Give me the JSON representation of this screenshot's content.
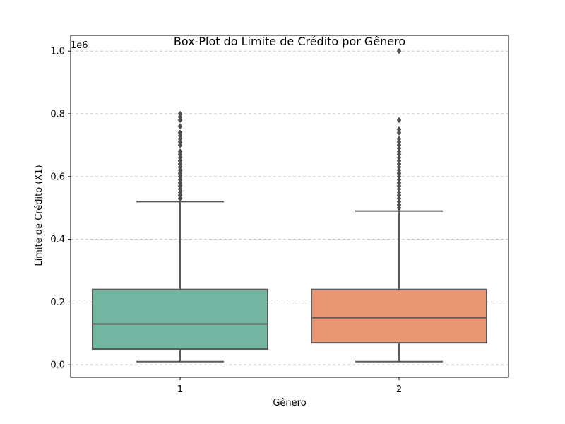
{
  "chart_data": {
    "type": "box",
    "title": "Box-Plot do Limite de Crédito por Gênero",
    "xlabel": "Gênero",
    "ylabel": "Limite de Crédito (X1)",
    "y_scale_label": "1e6",
    "y_tick_labels": [
      "0.0",
      "0.2",
      "0.4",
      "0.6",
      "0.8",
      "1.0"
    ],
    "y_ticks": [
      0,
      200000,
      400000,
      600000,
      800000,
      1000000
    ],
    "ylim": [
      -40000,
      1050000
    ],
    "grid": "y dashed",
    "categories": [
      "1",
      "2"
    ],
    "boxes": [
      {
        "category": "1",
        "color": "#72b6a1",
        "min": 10000,
        "q1": 50000,
        "median": 130000,
        "q3": 240000,
        "whisker_high": 520000,
        "outliers": [
          530000,
          540000,
          550000,
          560000,
          570000,
          580000,
          590000,
          600000,
          610000,
          620000,
          630000,
          640000,
          650000,
          660000,
          670000,
          680000,
          700000,
          710000,
          720000,
          730000,
          740000,
          760000,
          780000,
          790000,
          800000
        ]
      },
      {
        "category": "2",
        "color": "#e99675",
        "min": 10000,
        "q1": 70000,
        "median": 150000,
        "q3": 240000,
        "whisker_high": 490000,
        "outliers": [
          500000,
          510000,
          520000,
          530000,
          540000,
          550000,
          560000,
          570000,
          580000,
          590000,
          600000,
          610000,
          620000,
          630000,
          640000,
          650000,
          660000,
          670000,
          680000,
          690000,
          700000,
          710000,
          720000,
          740000,
          750000,
          780000,
          1000000
        ]
      }
    ]
  }
}
